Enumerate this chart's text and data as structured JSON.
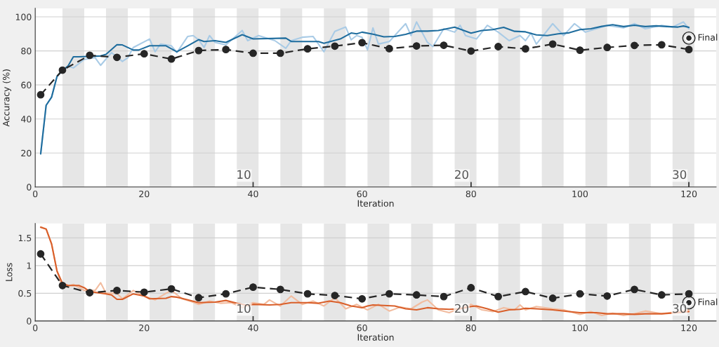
{
  "chart_data": [
    {
      "type": "line",
      "ylabel": "Accuracy (%)",
      "xlabel": "Iteration",
      "xlim": [
        0,
        125
      ],
      "xticks": [
        0,
        20,
        40,
        60,
        80,
        100,
        120
      ],
      "ylim": [
        0,
        105
      ],
      "yticks": [
        0,
        20,
        40,
        60,
        80,
        100
      ],
      "grid": "y",
      "legend": false,
      "bands": [
        {
          "axis": "x",
          "from": 5,
          "to": 9,
          "color": "#e6e6e6"
        },
        {
          "axis": "x",
          "from": 13,
          "to": 17,
          "color": "#e6e6e6"
        },
        {
          "axis": "x",
          "from": 21,
          "to": 25,
          "color": "#e6e6e6"
        },
        {
          "axis": "x",
          "from": 29,
          "to": 33,
          "color": "#e6e6e6"
        },
        {
          "axis": "x",
          "from": 37,
          "to": 41,
          "color": "#e6e6e6"
        },
        {
          "axis": "x",
          "from": 45,
          "to": 49,
          "color": "#e6e6e6"
        },
        {
          "axis": "x",
          "from": 53,
          "to": 57,
          "color": "#e6e6e6"
        },
        {
          "axis": "x",
          "from": 61,
          "to": 65,
          "color": "#e6e6e6"
        },
        {
          "axis": "x",
          "from": 69,
          "to": 73,
          "color": "#e6e6e6"
        },
        {
          "axis": "x",
          "from": 77,
          "to": 81,
          "color": "#e6e6e6"
        },
        {
          "axis": "x",
          "from": 85,
          "to": 89,
          "color": "#e6e6e6"
        },
        {
          "axis": "x",
          "from": 93,
          "to": 97,
          "color": "#e6e6e6"
        },
        {
          "axis": "x",
          "from": 101,
          "to": 105,
          "color": "#e6e6e6"
        },
        {
          "axis": "x",
          "from": 109,
          "to": 113,
          "color": "#e6e6e6"
        },
        {
          "axis": "x",
          "from": 117,
          "to": 121,
          "color": "#e6e6e6"
        }
      ],
      "annotations": [
        {
          "text": "10",
          "x": 40,
          "y": 0
        },
        {
          "text": "20",
          "x": 80,
          "y": 0
        },
        {
          "text": "30",
          "x": 120,
          "y": 0
        }
      ],
      "series": [
        {
          "color": "#a9cbe6",
          "line_style": "solid",
          "marker": "none",
          "x": [
            1,
            2,
            3,
            4,
            5,
            6,
            7,
            9,
            11,
            12,
            14,
            16,
            17,
            18,
            21,
            22,
            23,
            25,
            26,
            28,
            29,
            30,
            31,
            32,
            33,
            35,
            38,
            39,
            41,
            44,
            46,
            47,
            49,
            51,
            53,
            55,
            57,
            58,
            59,
            60,
            61,
            62,
            63,
            65,
            68,
            69,
            70,
            72,
            73,
            75,
            77,
            78,
            79,
            81,
            83,
            85,
            87,
            89,
            90,
            91,
            92,
            95,
            97,
            99,
            101,
            103,
            105,
            108,
            110,
            112,
            115,
            117,
            119,
            120
          ],
          "values": [
            19.5,
            48,
            52.8,
            65,
            68.5,
            71,
            70,
            75,
            76,
            71.5,
            79,
            73.8,
            76,
            82,
            87,
            79.5,
            84,
            83,
            79,
            88.5,
            89,
            86.5,
            82,
            89,
            85,
            83.5,
            92,
            86,
            89,
            86,
            81.5,
            86,
            88,
            88.5,
            79.5,
            91.5,
            94,
            86.5,
            89,
            88,
            80.6,
            93.5,
            84,
            85.5,
            96,
            89,
            97,
            85,
            82.5,
            93,
            91,
            95,
            89,
            87,
            95,
            91,
            86,
            89,
            86,
            90.5,
            84,
            96,
            89,
            96,
            91,
            93,
            95,
            93.5,
            96,
            93,
            95,
            94,
            97,
            93
          ]
        },
        {
          "color": "#1f6d9e",
          "line_style": "solid",
          "marker": "none",
          "x": [
            1,
            2,
            3,
            4,
            5,
            6,
            7,
            8,
            12,
            13,
            15,
            16,
            18,
            19,
            21,
            24,
            26,
            28,
            30,
            31,
            33,
            35,
            38,
            40,
            46,
            47,
            52,
            53,
            56,
            58,
            59,
            60,
            62,
            64,
            66,
            68,
            70,
            72,
            74,
            77,
            80,
            82,
            84,
            86,
            88,
            90,
            92,
            94,
            96,
            98,
            100,
            102,
            104,
            106,
            108,
            110,
            112,
            114,
            116,
            118,
            119,
            120
          ],
          "values": [
            19.5,
            48,
            52.8,
            65,
            68.5,
            71,
            76.5,
            76.5,
            77,
            78,
            83.6,
            83.5,
            80.5,
            80.5,
            83,
            83,
            79.5,
            83,
            86.6,
            85.5,
            86,
            85,
            89.5,
            87,
            87.5,
            85.5,
            85.5,
            84.5,
            87,
            90.5,
            90,
            91,
            89.8,
            88.3,
            88.5,
            89.7,
            91.6,
            91.6,
            92,
            93.9,
            90.4,
            92,
            92.5,
            93.8,
            91.5,
            91.2,
            89.4,
            89,
            90,
            90.6,
            92.5,
            93,
            94.4,
            95.4,
            94.3,
            95.1,
            94.3,
            94.7,
            94.3,
            94,
            94.6,
            93.8
          ]
        },
        {
          "color": "#262626",
          "line_style": "dashed",
          "marker": "circle",
          "x": [
            1,
            5,
            10,
            15,
            20,
            25,
            30,
            35,
            40,
            45,
            50,
            55,
            60,
            65,
            70,
            75,
            80,
            85,
            90,
            95,
            100,
            105,
            110,
            115,
            120
          ],
          "values": [
            54.2,
            68.7,
            77.4,
            76.2,
            78.3,
            75.2,
            80.2,
            80.8,
            78.6,
            78.6,
            81.2,
            82.8,
            84.8,
            81.3,
            82.9,
            83.3,
            79.9,
            82.5,
            81.2,
            84,
            80.4,
            82,
            83.2,
            83.6,
            80.8
          ]
        },
        {
          "type": "scatter",
          "name": "Final",
          "color": "#262626",
          "marker": "circle",
          "x": [
            120
          ],
          "values": [
            87.5
          ]
        }
      ]
    },
    {
      "type": "line",
      "ylabel": "Loss",
      "xlabel": "Iteration",
      "xlim": [
        0,
        125
      ],
      "xticks": [
        0,
        20,
        40,
        60,
        80,
        100,
        120
      ],
      "ylim": [
        0,
        1.76
      ],
      "yticks": [
        0,
        0.5,
        1,
        1.5
      ],
      "grid": "y",
      "legend": false,
      "bands": [
        {
          "axis": "x",
          "from": 5,
          "to": 9,
          "color": "#e6e6e6"
        },
        {
          "axis": "x",
          "from": 13,
          "to": 17,
          "color": "#e6e6e6"
        },
        {
          "axis": "x",
          "from": 21,
          "to": 25,
          "color": "#e6e6e6"
        },
        {
          "axis": "x",
          "from": 29,
          "to": 33,
          "color": "#e6e6e6"
        },
        {
          "axis": "x",
          "from": 37,
          "to": 41,
          "color": "#e6e6e6"
        },
        {
          "axis": "x",
          "from": 45,
          "to": 49,
          "color": "#e6e6e6"
        },
        {
          "axis": "x",
          "from": 53,
          "to": 57,
          "color": "#e6e6e6"
        },
        {
          "axis": "x",
          "from": 61,
          "to": 65,
          "color": "#e6e6e6"
        },
        {
          "axis": "x",
          "from": 69,
          "to": 73,
          "color": "#e6e6e6"
        },
        {
          "axis": "x",
          "from": 77,
          "to": 81,
          "color": "#e6e6e6"
        },
        {
          "axis": "x",
          "from": 85,
          "to": 89,
          "color": "#e6e6e6"
        },
        {
          "axis": "x",
          "from": 93,
          "to": 97,
          "color": "#e6e6e6"
        },
        {
          "axis": "x",
          "from": 101,
          "to": 105,
          "color": "#e6e6e6"
        },
        {
          "axis": "x",
          "from": 109,
          "to": 113,
          "color": "#e6e6e6"
        },
        {
          "axis": "x",
          "from": 117,
          "to": 121,
          "color": "#e6e6e6"
        }
      ],
      "annotations": [
        {
          "text": "10",
          "x": 40,
          "y": 0
        },
        {
          "text": "20",
          "x": 80,
          "y": 0
        },
        {
          "text": "30",
          "x": 120,
          "y": 0
        }
      ],
      "series": [
        {
          "color": "#f2bc9f",
          "line_style": "solid",
          "marker": "none",
          "x": [
            1,
            2,
            3,
            4,
            5,
            7,
            9,
            11,
            12,
            13,
            15,
            16,
            18,
            20,
            22,
            24,
            25,
            27,
            29,
            30,
            32,
            34,
            36,
            38,
            40,
            42,
            43,
            45,
            47,
            49,
            51,
            53,
            55,
            57,
            59,
            61,
            63,
            65,
            67,
            69,
            71,
            72,
            74,
            76,
            78,
            80,
            82,
            84,
            86,
            88,
            89,
            90,
            92,
            95,
            97,
            100,
            102,
            104,
            106,
            108,
            110,
            112,
            115,
            118,
            120
          ],
          "values": [
            1.7,
            1.66,
            1.4,
            0.9,
            0.6,
            0.66,
            0.55,
            0.55,
            0.69,
            0.5,
            0.5,
            0.4,
            0.55,
            0.45,
            0.38,
            0.5,
            0.55,
            0.4,
            0.34,
            0.3,
            0.36,
            0.32,
            0.33,
            0.24,
            0.33,
            0.3,
            0.38,
            0.27,
            0.45,
            0.3,
            0.36,
            0.27,
            0.42,
            0.22,
            0.3,
            0.2,
            0.3,
            0.18,
            0.25,
            0.22,
            0.34,
            0.38,
            0.2,
            0.15,
            0.23,
            0.3,
            0.2,
            0.17,
            0.24,
            0.2,
            0.29,
            0.2,
            0.26,
            0.22,
            0.2,
            0.12,
            0.17,
            0.1,
            0.14,
            0.1,
            0.13,
            0.18,
            0.13,
            0.17,
            0.2
          ]
        },
        {
          "color": "#d95f2a",
          "line_style": "solid",
          "marker": "none",
          "x": [
            1,
            2,
            3,
            4,
            5,
            6,
            8,
            9,
            10,
            13,
            14,
            15,
            16,
            18,
            20,
            21,
            24,
            25,
            26,
            28,
            30,
            33,
            35,
            37,
            39,
            40,
            43,
            45,
            47,
            50,
            52,
            54,
            56,
            58,
            60,
            61,
            62,
            64,
            66,
            68,
            70,
            72,
            74,
            76,
            78,
            80,
            81,
            83,
            85,
            87,
            89,
            90,
            92,
            95,
            98,
            100,
            103,
            105,
            108,
            110,
            112,
            115,
            118,
            120
          ],
          "values": [
            1.69,
            1.66,
            1.39,
            0.9,
            0.68,
            0.64,
            0.64,
            0.6,
            0.53,
            0.49,
            0.47,
            0.39,
            0.39,
            0.49,
            0.45,
            0.4,
            0.41,
            0.44,
            0.43,
            0.38,
            0.33,
            0.34,
            0.37,
            0.32,
            0.28,
            0.3,
            0.29,
            0.3,
            0.33,
            0.33,
            0.32,
            0.36,
            0.33,
            0.27,
            0.24,
            0.27,
            0.29,
            0.28,
            0.27,
            0.22,
            0.2,
            0.24,
            0.22,
            0.21,
            0.22,
            0.26,
            0.27,
            0.22,
            0.16,
            0.2,
            0.21,
            0.23,
            0.22,
            0.2,
            0.17,
            0.15,
            0.15,
            0.13,
            0.13,
            0.12,
            0.13,
            0.13,
            0.15,
            0.17
          ]
        },
        {
          "color": "#262626",
          "line_style": "dashed",
          "marker": "circle",
          "x": [
            1,
            5,
            10,
            15,
            20,
            25,
            30,
            35,
            40,
            45,
            50,
            55,
            60,
            65,
            70,
            75,
            80,
            85,
            90,
            95,
            100,
            105,
            110,
            115,
            120
          ],
          "values": [
            1.21,
            0.64,
            0.51,
            0.55,
            0.52,
            0.58,
            0.42,
            0.49,
            0.61,
            0.57,
            0.49,
            0.46,
            0.4,
            0.49,
            0.47,
            0.44,
            0.6,
            0.44,
            0.53,
            0.41,
            0.49,
            0.45,
            0.57,
            0.47,
            0.49
          ]
        },
        {
          "type": "scatter",
          "name": "Final",
          "color": "#262626",
          "marker": "circle",
          "x": [
            120
          ],
          "values": [
            0.33
          ]
        }
      ]
    }
  ]
}
